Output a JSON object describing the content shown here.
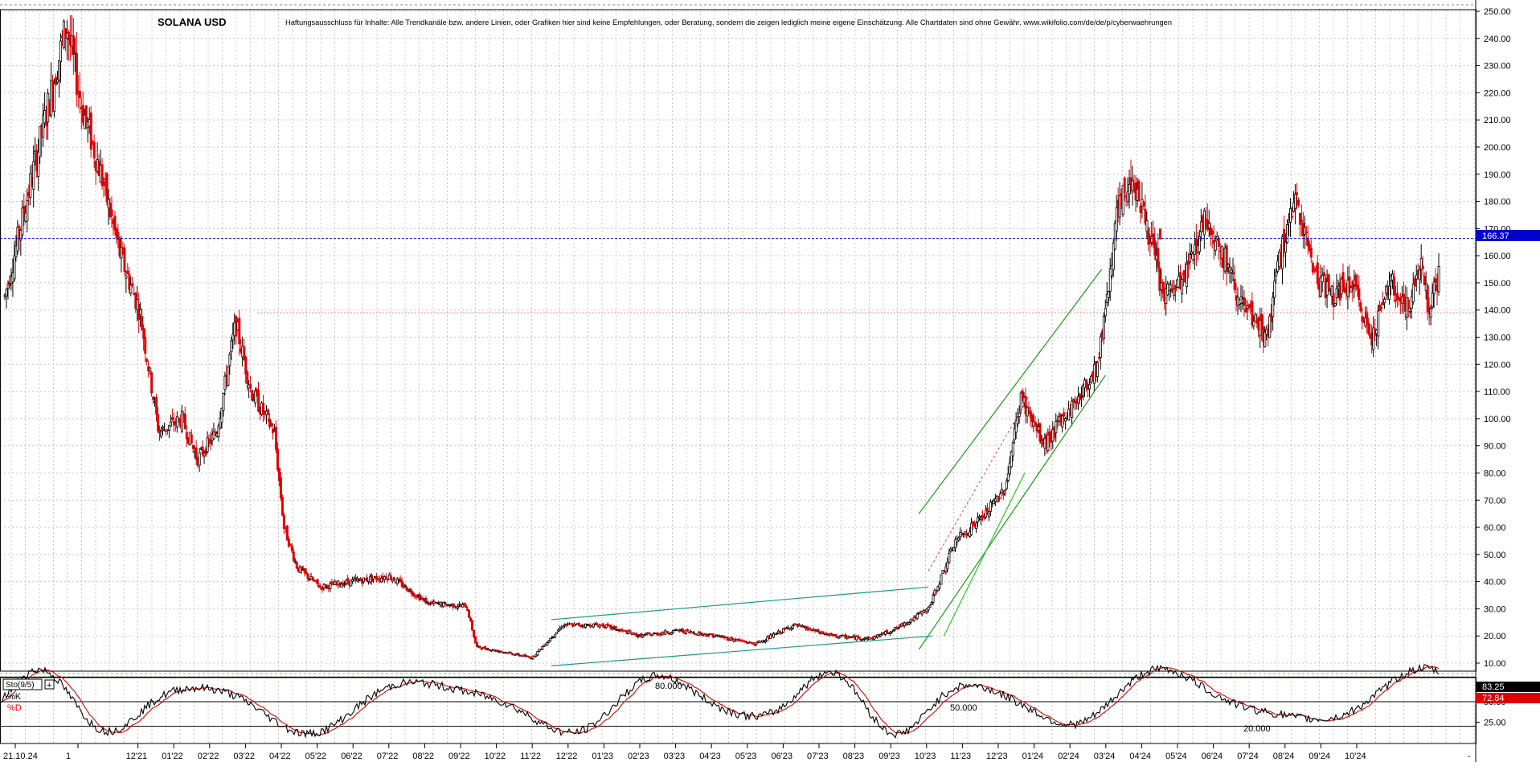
{
  "header": {
    "title": "SOLANA USD",
    "disclaimer": "Haftungsausschluss für Inhalte: Alle Trendkanäle bzw. andere Linien, oder Grafiken hier sind keine Empfehlungen, oder Beratung, sondern die zeigen lediglich meine eigene Einschätzung. Alle Chartdaten sind ohne Gewähr.  www.wikifolio.com/de/de/p/cyberwaehrungen"
  },
  "colors": {
    "up": "#000000",
    "down": "#e00000",
    "grid": "#c8c8c8",
    "level_line": "#0000cc",
    "level_badge": "#0000cc",
    "channel_green": "#1a9a1a",
    "channel_teal": "#1a9a8a",
    "stoch_k": "#000000",
    "stoch_d": "#e00000",
    "k_badge": "#000000",
    "d_badge": "#e00000"
  },
  "chart_data": [
    {
      "type": "candlestick",
      "title": "SOLANA USD",
      "ylim": [
        10,
        250
      ],
      "y_ticks": [
        "10.00",
        "20.00",
        "30.00",
        "40.00",
        "50.00",
        "60.00",
        "70.00",
        "80.00",
        "90.00",
        "100.00",
        "110.00",
        "120.00",
        "130.00",
        "140.00",
        "150.00",
        "160.00",
        "170.00",
        "180.00",
        "190.00",
        "200.00",
        "210.00",
        "220.00",
        "230.00",
        "240.00",
        "250.00"
      ],
      "x_ticks": [
        "21.10.24",
        "1",
        "12'21",
        "01'22",
        "02'22",
        "03'22",
        "04'22",
        "05'22",
        "06'22",
        "07'22",
        "08'22",
        "09'22",
        "10'22",
        "11'22",
        "12'22",
        "01'23",
        "02'23",
        "03'23",
        "04'23",
        "05'23",
        "06'23",
        "07'23",
        "08'23",
        "09'23",
        "10'23",
        "11'23",
        "12'23",
        "01'24",
        "02'24",
        "03'24",
        "04'24",
        "05'24",
        "06'24",
        "07'24",
        "08'24",
        "09'24",
        "10'24"
      ],
      "grid": true,
      "current_level": 166.37,
      "current_level_label": "166.37",
      "reference_level": 139,
      "price_path": [
        [
          0,
          145
        ],
        [
          1.2,
          220
        ],
        [
          1.6,
          245
        ],
        [
          2.0,
          215
        ],
        [
          2.5,
          190
        ],
        [
          3.0,
          160
        ],
        [
          3.5,
          140
        ],
        [
          4.0,
          95
        ],
        [
          4.6,
          100
        ],
        [
          5.0,
          85
        ],
        [
          5.5,
          95
        ],
        [
          6.0,
          135
        ],
        [
          6.4,
          110
        ],
        [
          7.0,
          95
        ],
        [
          7.25,
          60
        ],
        [
          7.6,
          45
        ],
        [
          8.2,
          38
        ],
        [
          9.0,
          40
        ],
        [
          10.0,
          42
        ],
        [
          11.0,
          32
        ],
        [
          12.0,
          31
        ],
        [
          12.25,
          16
        ],
        [
          13.0,
          14
        ],
        [
          13.7,
          12
        ],
        [
          14.5,
          24
        ],
        [
          15.5,
          24
        ],
        [
          16.5,
          20
        ],
        [
          17.5,
          22
        ],
        [
          18.5,
          20
        ],
        [
          19.5,
          17
        ],
        [
          20.5,
          24
        ],
        [
          21.5,
          20
        ],
        [
          22.5,
          19
        ],
        [
          23.2,
          23
        ],
        [
          24.0,
          30
        ],
        [
          24.7,
          55
        ],
        [
          25.5,
          65
        ],
        [
          26.0,
          75
        ],
        [
          26.4,
          108
        ],
        [
          27.0,
          90
        ],
        [
          27.5,
          100
        ],
        [
          28.0,
          110
        ],
        [
          28.4,
          120
        ],
        [
          28.9,
          175
        ],
        [
          29.3,
          190
        ],
        [
          29.7,
          170
        ],
        [
          30.1,
          145
        ],
        [
          30.6,
          150
        ],
        [
          31.2,
          175
        ],
        [
          31.8,
          155
        ],
        [
          32.2,
          140
        ],
        [
          32.8,
          130
        ],
        [
          33.2,
          165
        ],
        [
          33.6,
          180
        ],
        [
          34.0,
          155
        ],
        [
          34.5,
          145
        ],
        [
          35.0,
          150
        ],
        [
          35.5,
          130
        ],
        [
          36.0,
          150
        ],
        [
          36.5,
          140
        ],
        [
          36.8,
          160
        ],
        [
          37.0,
          140
        ],
        [
          37.3,
          155
        ]
      ],
      "channels": [
        {
          "color": "green",
          "from": [
            23.75,
            65
          ],
          "to": [
            28.5,
            155
          ]
        },
        {
          "color": "green",
          "from": [
            23.75,
            15
          ],
          "to": [
            28.6,
            116
          ]
        },
        {
          "color": "teal",
          "from": [
            14.2,
            26
          ],
          "to": [
            24.0,
            38
          ]
        },
        {
          "color": "teal",
          "from": [
            14.2,
            9
          ],
          "to": [
            24.1,
            20
          ]
        }
      ]
    },
    {
      "type": "line",
      "title": "Sto(9/5)",
      "ylim": [
        0,
        100
      ],
      "y_ticks": [
        "25.00",
        "50.00"
      ],
      "levels": [
        "80.000",
        "50.000",
        "20.000"
      ],
      "series": [
        {
          "name": "%K",
          "last": 83.25,
          "last_label": "83.25"
        },
        {
          "name": "%D",
          "last": 72.84,
          "last_label": "72.84"
        }
      ]
    }
  ]
}
